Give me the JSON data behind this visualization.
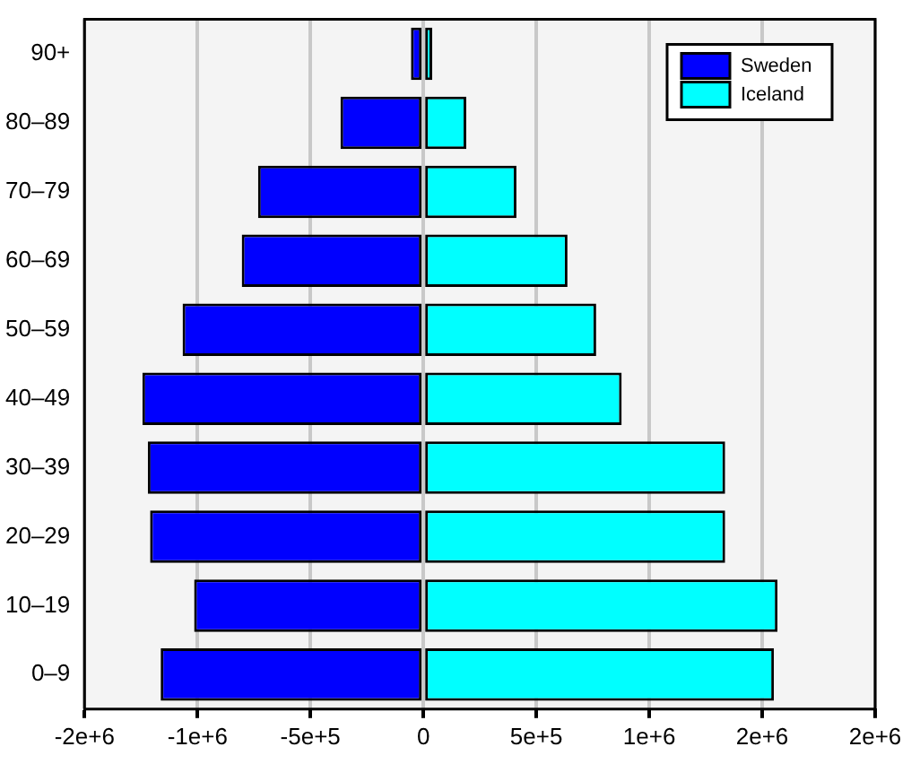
{
  "chart_data": {
    "type": "bar",
    "orientation": "horizontal",
    "stacked": true,
    "categories": [
      "90+",
      "80–89",
      "70–79",
      "60–69",
      "50–59",
      "40–49",
      "30–39",
      "20–29",
      "10–19",
      "0–9"
    ],
    "series": [
      {
        "name": "Sweden",
        "color": "#0000ff",
        "values": [
          -55000,
          -367000,
          -732000,
          -804000,
          -1066000,
          -1244000,
          -1220000,
          -1210000,
          -1015000,
          -1163000
        ]
      },
      {
        "name": "Iceland",
        "color": "#00ffff",
        "values": [
          39000,
          190000,
          412000,
          638000,
          765000,
          878000,
          1336000,
          1336000,
          1568000,
          1552000
        ]
      }
    ],
    "xlim": [
      -1500000,
      2000000
    ],
    "xticks": [
      {
        "value": -1500000,
        "label": "-2e+6"
      },
      {
        "value": -1000000,
        "label": "-1e+6"
      },
      {
        "value": -500000,
        "label": "-5e+5"
      },
      0,
      {
        "value": 500000,
        "label": "5e+5"
      },
      {
        "value": 1000000,
        "label": "1e+6"
      },
      {
        "value": 1500000,
        "label": "2e+6"
      },
      {
        "value": 2000000,
        "label": "2e+6"
      }
    ],
    "grid": "x",
    "legend": "top right"
  }
}
